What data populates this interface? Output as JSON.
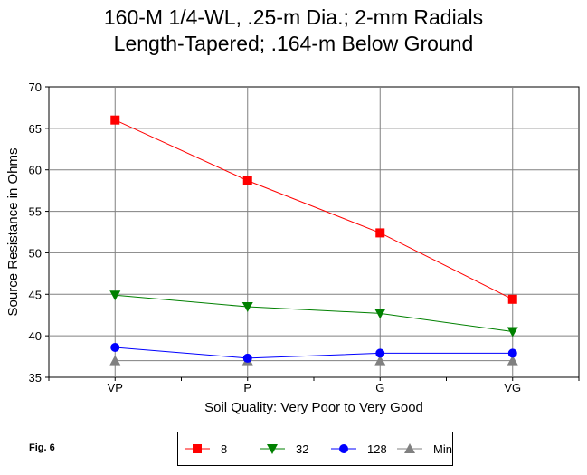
{
  "chart_data": {
    "type": "line",
    "title": [
      "160-M 1/4-WL, .25-m Dia.; 2-mm Radials",
      "Length-Tapered; .164-m Below Ground"
    ],
    "xlabel": "Soil Quality:  Very Poor to Very Good",
    "ylabel": "Source Resistance in Ohms",
    "categories": [
      "VP",
      "P",
      "G",
      "VG"
    ],
    "ylim": [
      35,
      70
    ],
    "yticks": [
      35,
      40,
      45,
      50,
      55,
      60,
      65,
      70
    ],
    "grid": true,
    "legend_position": "bottom",
    "series": [
      {
        "name": "8",
        "values": [
          66.0,
          58.7,
          52.4,
          44.4
        ],
        "color": "#ff0000",
        "marker": "square"
      },
      {
        "name": "32",
        "values": [
          44.9,
          43.5,
          42.7,
          40.5
        ],
        "color": "#008000",
        "marker": "triangle-down"
      },
      {
        "name": "128",
        "values": [
          38.6,
          37.3,
          37.9,
          37.9
        ],
        "color": "#0000ff",
        "marker": "circle"
      },
      {
        "name": "Min",
        "values": [
          37.0,
          37.0,
          37.0,
          37.0
        ],
        "color": "#808080",
        "marker": "triangle-up"
      }
    ]
  },
  "figure_label": "Fig. 6"
}
